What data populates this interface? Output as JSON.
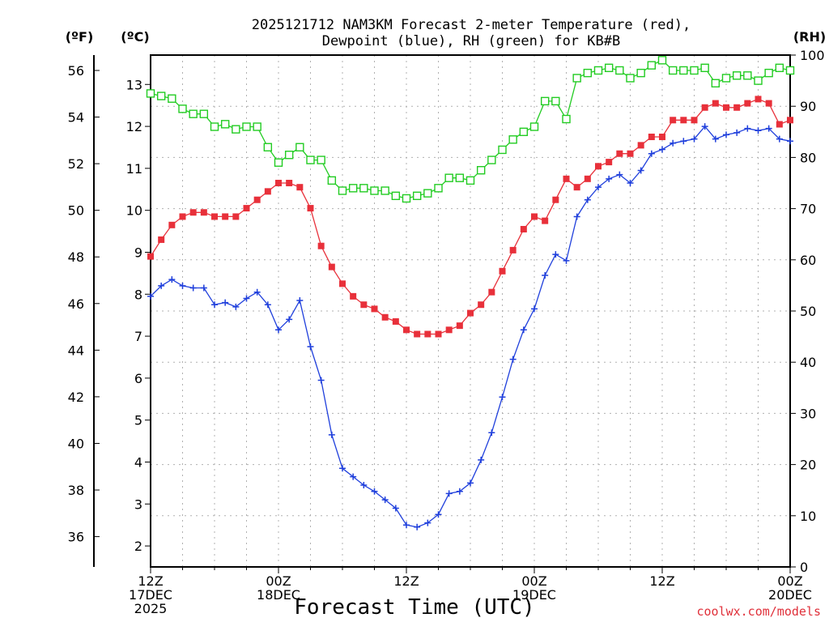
{
  "chart_data": {
    "type": "line",
    "title": "2025121712 NAM3KM Forecast 2-meter Temperature (red), Dewpoint (blue), RH (green) for KB#B",
    "title_lines": [
      "2025121712 NAM3KM Forecast 2-meter Temperature (red),",
      "Dewpoint (blue), RH (green) for KB#B"
    ],
    "xlabel": "Forecast Time (UTC)",
    "credit": "coolwx.com/models",
    "x_unit": "forecast hour",
    "xlim": [
      0,
      60
    ],
    "x_ticks": [
      {
        "x": 0,
        "lines": [
          "12Z",
          "17DEC",
          "2025"
        ]
      },
      {
        "x": 12,
        "lines": [
          "00Z",
          "18DEC"
        ]
      },
      {
        "x": 24,
        "lines": [
          "12Z"
        ]
      },
      {
        "x": 36,
        "lines": [
          "00Z",
          "19DEC"
        ]
      },
      {
        "x": 48,
        "lines": [
          "12Z"
        ]
      },
      {
        "x": 60,
        "lines": [
          "00Z",
          "20DEC"
        ]
      }
    ],
    "axes": {
      "celsius": {
        "label": "(ºC)",
        "ylim": [
          1.5,
          13.7
        ],
        "ticks": [
          2,
          3,
          4,
          5,
          6,
          7,
          8,
          9,
          10,
          11,
          12,
          13
        ]
      },
      "fahrenheit": {
        "label": "(ºF)",
        "ticks": [
          36,
          38,
          40,
          42,
          44,
          46,
          48,
          50,
          52,
          54,
          56
        ]
      },
      "rh": {
        "label": "(RH)",
        "ylim": [
          0,
          100
        ],
        "ticks": [
          0,
          10,
          20,
          30,
          40,
          50,
          60,
          70,
          80,
          90,
          100
        ]
      }
    },
    "x": [
      0,
      1,
      2,
      3,
      4,
      5,
      6,
      7,
      8,
      9,
      10,
      11,
      12,
      13,
      14,
      15,
      16,
      17,
      18,
      19,
      20,
      21,
      22,
      23,
      24,
      25,
      26,
      27,
      28,
      29,
      30,
      31,
      32,
      33,
      34,
      35,
      36,
      37,
      38,
      39,
      40,
      41,
      42,
      43,
      44,
      45,
      46,
      47,
      48,
      49,
      50,
      51,
      52,
      53,
      54,
      55,
      56,
      57,
      58,
      59,
      60
    ],
    "series": [
      {
        "name": "Temperature",
        "color": "#e8303a",
        "marker": "filled-square",
        "axis": "celsius",
        "values": [
          8.9,
          9.3,
          9.65,
          9.85,
          9.95,
          9.95,
          9.85,
          9.85,
          9.85,
          10.05,
          10.25,
          10.45,
          10.65,
          10.65,
          10.55,
          10.05,
          9.15,
          8.65,
          8.25,
          7.95,
          7.75,
          7.65,
          7.45,
          7.35,
          7.15,
          7.05,
          7.05,
          7.05,
          7.15,
          7.25,
          7.55,
          7.75,
          8.05,
          8.55,
          9.05,
          9.55,
          9.85,
          9.75,
          10.25,
          10.75,
          10.55,
          10.75,
          11.05,
          11.15,
          11.35,
          11.35,
          11.55,
          11.75,
          11.75,
          12.15,
          12.15,
          12.15,
          12.45,
          12.55,
          12.45,
          12.45,
          12.55,
          12.65,
          12.55,
          12.05,
          12.15
        ]
      },
      {
        "name": "Dewpoint",
        "color": "#1f3fdc",
        "marker": "plus",
        "axis": "celsius",
        "values": [
          7.95,
          8.2,
          8.35,
          8.2,
          8.15,
          8.15,
          7.75,
          7.8,
          7.7,
          7.9,
          8.05,
          7.75,
          7.15,
          7.4,
          7.85,
          6.75,
          5.95,
          4.65,
          3.85,
          3.65,
          3.45,
          3.3,
          3.1,
          2.9,
          2.5,
          2.45,
          2.55,
          2.75,
          3.25,
          3.3,
          3.5,
          4.05,
          4.7,
          5.55,
          6.45,
          7.15,
          7.65,
          8.45,
          8.95,
          8.8,
          9.85,
          10.25,
          10.55,
          10.75,
          10.85,
          10.65,
          10.95,
          11.35,
          11.45,
          11.6,
          11.65,
          11.7,
          12.0,
          11.7,
          11.8,
          11.85,
          11.95,
          11.9,
          11.95,
          11.7,
          11.65
        ]
      },
      {
        "name": "RH",
        "color": "#22cc22",
        "marker": "open-square",
        "axis": "rh",
        "values": [
          92.5,
          92,
          91.5,
          89.5,
          88.5,
          88.5,
          86,
          86.5,
          85.5,
          86,
          86,
          82,
          79,
          80.5,
          82,
          79.5,
          79.5,
          75.5,
          73.5,
          74,
          74,
          73.5,
          73.5,
          72.5,
          72,
          72.5,
          73,
          74,
          76,
          76,
          75.5,
          77.5,
          79.5,
          81.5,
          83.5,
          85,
          86,
          91,
          91,
          87.5,
          95.5,
          96.5,
          97,
          97.5,
          97,
          95.5,
          96.5,
          98,
          99,
          97,
          97,
          97,
          97.5,
          94.5,
          95.5,
          96,
          96,
          95,
          96.5,
          97.5,
          97
        ]
      }
    ]
  }
}
